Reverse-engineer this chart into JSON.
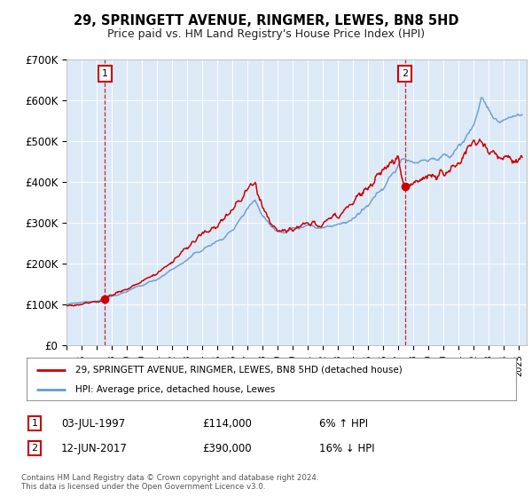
{
  "title": "29, SPRINGETT AVENUE, RINGMER, LEWES, BN8 5HD",
  "subtitle": "Price paid vs. HM Land Registry's House Price Index (HPI)",
  "fig_bg_color": "#ffffff",
  "plot_bg_color": "#dce9f7",
  "ylim": [
    0,
    700000
  ],
  "yticks": [
    0,
    100000,
    200000,
    300000,
    400000,
    500000,
    600000,
    700000
  ],
  "ytick_labels": [
    "£0",
    "£100K",
    "£200K",
    "£300K",
    "£400K",
    "£500K",
    "£600K",
    "£700K"
  ],
  "sale1_year": 1997.54,
  "sale1_price": 114000,
  "sale2_year": 2017.44,
  "sale2_price": 390000,
  "property_color": "#cc0000",
  "hpi_color": "#6699cc",
  "legend_label_property": "29, SPRINGETT AVENUE, RINGMER, LEWES, BN8 5HD (detached house)",
  "legend_label_hpi": "HPI: Average price, detached house, Lewes",
  "footer_line1": "Contains HM Land Registry data © Crown copyright and database right 2024.",
  "footer_line2": "This data is licensed under the Open Government Licence v3.0.",
  "table_row1_num": "1",
  "table_row1_date": "03-JUL-1997",
  "table_row1_price": "£114,000",
  "table_row1_hpi": "6% ↑ HPI",
  "table_row2_num": "2",
  "table_row2_date": "12-JUN-2017",
  "table_row2_price": "£390,000",
  "table_row2_hpi": "16% ↓ HPI"
}
